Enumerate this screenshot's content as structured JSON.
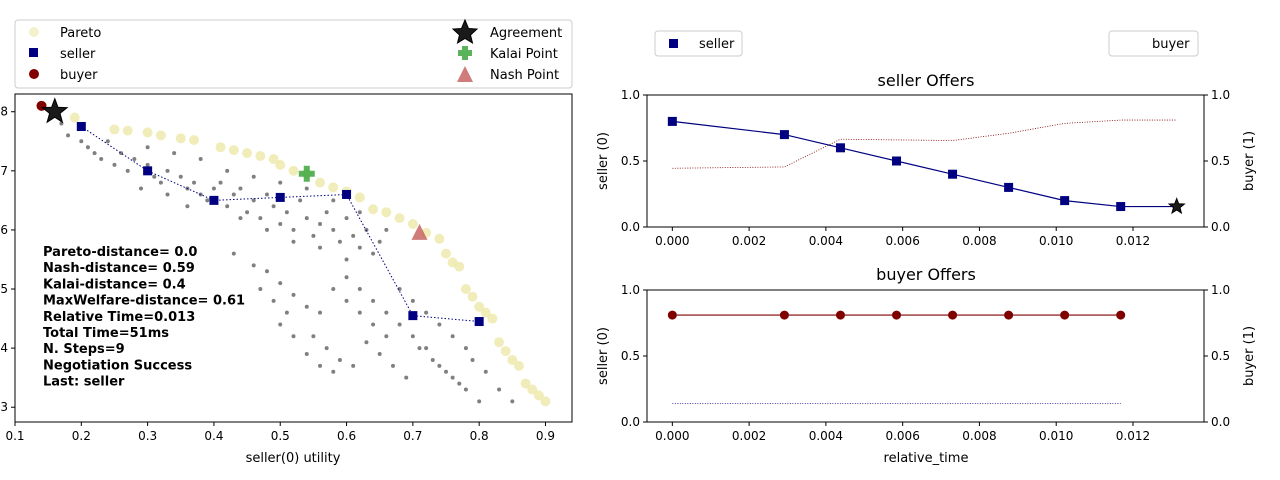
{
  "chart_data": [
    {
      "type": "scatter",
      "xlabel": "seller(0) utility",
      "ylabel": "",
      "xlim": [
        0.1,
        0.94
      ],
      "ylim": [
        0.275,
        0.83
      ],
      "x_ticks": [
        0.1,
        0.2,
        0.3,
        0.4,
        0.5,
        0.6,
        0.7,
        0.8,
        0.9
      ],
      "y_ticks": [
        0.3,
        0.4,
        0.5,
        0.6,
        0.7,
        0.8
      ],
      "y_tick_labels": [
        "3",
        "4",
        "5",
        "6",
        "7",
        "8"
      ],
      "legend": {
        "pareto": "Pareto",
        "seller": "seller",
        "buyer": "buyer",
        "agreement": "Agreement",
        "kalai": "Kalai Point",
        "nash": "Nash Point"
      },
      "pareto_frontier": [
        [
          0.14,
          0.81
        ],
        [
          0.16,
          0.8
        ],
        [
          0.19,
          0.79
        ],
        [
          0.25,
          0.77
        ],
        [
          0.27,
          0.768
        ],
        [
          0.3,
          0.765
        ],
        [
          0.32,
          0.76
        ],
        [
          0.35,
          0.755
        ],
        [
          0.37,
          0.752
        ],
        [
          0.41,
          0.74
        ],
        [
          0.43,
          0.735
        ],
        [
          0.45,
          0.73
        ],
        [
          0.47,
          0.725
        ],
        [
          0.49,
          0.72
        ],
        [
          0.5,
          0.71
        ],
        [
          0.52,
          0.7
        ],
        [
          0.54,
          0.695
        ],
        [
          0.56,
          0.68
        ],
        [
          0.58,
          0.672
        ],
        [
          0.6,
          0.665
        ],
        [
          0.62,
          0.655
        ],
        [
          0.64,
          0.635
        ],
        [
          0.66,
          0.63
        ],
        [
          0.68,
          0.62
        ],
        [
          0.7,
          0.61
        ],
        [
          0.72,
          0.595
        ],
        [
          0.74,
          0.585
        ],
        [
          0.75,
          0.56
        ],
        [
          0.76,
          0.545
        ],
        [
          0.77,
          0.538
        ],
        [
          0.78,
          0.5
        ],
        [
          0.79,
          0.487
        ],
        [
          0.8,
          0.47
        ],
        [
          0.81,
          0.46
        ],
        [
          0.82,
          0.45
        ],
        [
          0.83,
          0.41
        ],
        [
          0.84,
          0.395
        ],
        [
          0.85,
          0.38
        ],
        [
          0.86,
          0.37
        ],
        [
          0.87,
          0.34
        ],
        [
          0.88,
          0.33
        ],
        [
          0.89,
          0.32
        ],
        [
          0.9,
          0.31
        ]
      ],
      "outcomes": [
        [
          0.17,
          0.78
        ],
        [
          0.18,
          0.76
        ],
        [
          0.2,
          0.75
        ],
        [
          0.21,
          0.74
        ],
        [
          0.22,
          0.73
        ],
        [
          0.23,
          0.72
        ],
        [
          0.25,
          0.71
        ],
        [
          0.27,
          0.7
        ],
        [
          0.28,
          0.72
        ],
        [
          0.3,
          0.71
        ],
        [
          0.31,
          0.69
        ],
        [
          0.32,
          0.68
        ],
        [
          0.33,
          0.7
        ],
        [
          0.35,
          0.69
        ],
        [
          0.36,
          0.67
        ],
        [
          0.37,
          0.68
        ],
        [
          0.38,
          0.66
        ],
        [
          0.39,
          0.65
        ],
        [
          0.4,
          0.67
        ],
        [
          0.41,
          0.68
        ],
        [
          0.42,
          0.64
        ],
        [
          0.43,
          0.66
        ],
        [
          0.44,
          0.67
        ],
        [
          0.45,
          0.63
        ],
        [
          0.46,
          0.65
        ],
        [
          0.47,
          0.62
        ],
        [
          0.48,
          0.66
        ],
        [
          0.49,
          0.64
        ],
        [
          0.5,
          0.61
        ],
        [
          0.51,
          0.63
        ],
        [
          0.52,
          0.6
        ],
        [
          0.53,
          0.65
        ],
        [
          0.54,
          0.62
        ],
        [
          0.55,
          0.59
        ],
        [
          0.56,
          0.61
        ],
        [
          0.57,
          0.63
        ],
        [
          0.58,
          0.6
        ],
        [
          0.59,
          0.58
        ],
        [
          0.6,
          0.62
        ],
        [
          0.61,
          0.59
        ],
        [
          0.62,
          0.57
        ],
        [
          0.63,
          0.6
        ],
        [
          0.64,
          0.56
        ],
        [
          0.65,
          0.58
        ],
        [
          0.3,
          0.74
        ],
        [
          0.34,
          0.73
        ],
        [
          0.38,
          0.72
        ],
        [
          0.42,
          0.7
        ],
        [
          0.46,
          0.69
        ],
        [
          0.5,
          0.68
        ],
        [
          0.54,
          0.67
        ],
        [
          0.58,
          0.65
        ],
        [
          0.62,
          0.63
        ],
        [
          0.66,
          0.6
        ],
        [
          0.24,
          0.75
        ],
        [
          0.26,
          0.73
        ],
        [
          0.29,
          0.67
        ],
        [
          0.33,
          0.66
        ],
        [
          0.36,
          0.64
        ],
        [
          0.44,
          0.62
        ],
        [
          0.48,
          0.6
        ],
        [
          0.52,
          0.58
        ],
        [
          0.56,
          0.57
        ],
        [
          0.6,
          0.55
        ],
        [
          0.43,
          0.56
        ],
        [
          0.46,
          0.54
        ],
        [
          0.48,
          0.53
        ],
        [
          0.5,
          0.51
        ],
        [
          0.52,
          0.49
        ],
        [
          0.54,
          0.47
        ],
        [
          0.56,
          0.46
        ],
        [
          0.58,
          0.5
        ],
        [
          0.6,
          0.48
        ],
        [
          0.62,
          0.46
        ],
        [
          0.64,
          0.44
        ],
        [
          0.66,
          0.42
        ],
        [
          0.68,
          0.5
        ],
        [
          0.7,
          0.48
        ],
        [
          0.72,
          0.46
        ],
        [
          0.74,
          0.44
        ],
        [
          0.76,
          0.42
        ],
        [
          0.78,
          0.4
        ],
        [
          0.55,
          0.42
        ],
        [
          0.57,
          0.4
        ],
        [
          0.59,
          0.38
        ],
        [
          0.61,
          0.37
        ],
        [
          0.63,
          0.41
        ],
        [
          0.65,
          0.39
        ],
        [
          0.67,
          0.37
        ],
        [
          0.69,
          0.35
        ],
        [
          0.71,
          0.4
        ],
        [
          0.73,
          0.38
        ],
        [
          0.75,
          0.36
        ],
        [
          0.77,
          0.34
        ],
        [
          0.79,
          0.38
        ],
        [
          0.81,
          0.36
        ],
        [
          0.83,
          0.33
        ],
        [
          0.85,
          0.31
        ],
        [
          0.5,
          0.44
        ],
        [
          0.52,
          0.42
        ],
        [
          0.54,
          0.39
        ],
        [
          0.56,
          0.37
        ],
        [
          0.58,
          0.36
        ],
        [
          0.6,
          0.52
        ],
        [
          0.62,
          0.5
        ],
        [
          0.64,
          0.48
        ],
        [
          0.66,
          0.46
        ],
        [
          0.68,
          0.44
        ],
        [
          0.7,
          0.42
        ],
        [
          0.72,
          0.4
        ],
        [
          0.74,
          0.37
        ],
        [
          0.76,
          0.35
        ],
        [
          0.78,
          0.33
        ],
        [
          0.8,
          0.31
        ],
        [
          0.47,
          0.5
        ],
        [
          0.49,
          0.48
        ],
        [
          0.51,
          0.46
        ]
      ],
      "seller_offers": [
        [
          0.2,
          0.775
        ],
        [
          0.3,
          0.7
        ],
        [
          0.4,
          0.65
        ],
        [
          0.5,
          0.655
        ],
        [
          0.6,
          0.66
        ],
        [
          0.7,
          0.455
        ],
        [
          0.8,
          0.445
        ]
      ],
      "buyer_offers": [
        [
          0.14,
          0.81
        ]
      ],
      "agreement": [
        0.16,
        0.8
      ],
      "kalai": [
        0.54,
        0.695
      ],
      "nash": [
        0.71,
        0.595
      ],
      "annotation_lines": [
        "Pareto-distance=  0.0",
        "Nash-distance= 0.59",
        "Kalai-distance=  0.4",
        "MaxWelfare-distance= 0.61",
        "Relative Time=0.013",
        "Total Time=51ms",
        "N. Steps=9",
        "Negotiation Success",
        "Last: seller"
      ],
      "colors": {
        "pareto": "#eee8aa",
        "outcome": "#808080",
        "seller": "#000080",
        "buyer": "#800000",
        "kalai": "#3da63d",
        "nash": "#c0504d",
        "agreement": "#000000"
      }
    },
    {
      "type": "line",
      "title": "seller Offers",
      "ylabel": "seller (0)",
      "ylabel_right": "buyer (1)",
      "legend_left": "seller",
      "legend_right": "buyer",
      "xlim": [
        -0.00066,
        0.01385
      ],
      "ylim": [
        0,
        1.0
      ],
      "x_ticks": [
        0.0,
        0.002,
        0.004,
        0.006,
        0.008,
        0.01,
        0.012
      ],
      "x_tick_labels": [
        "0.000",
        "0.002",
        "0.004",
        "0.006",
        "0.008",
        "0.010",
        "0.012"
      ],
      "y_ticks": [
        0.0,
        0.5,
        1.0
      ],
      "y_tick_labels": [
        "0.0",
        "0.5",
        "1.0"
      ],
      "x": [
        0.0,
        0.00292,
        0.00438,
        0.00584,
        0.0073,
        0.00876,
        0.01022,
        0.01168,
        0.01314
      ],
      "seller_utility": [
        0.8,
        0.7,
        0.6,
        0.5,
        0.4,
        0.3,
        0.2,
        0.155,
        0.155
      ],
      "buyer_utility": [
        0.445,
        0.455,
        0.665,
        0.66,
        0.655,
        0.71,
        0.785,
        0.81,
        0.81
      ],
      "agreement": [
        0.01314,
        0.155
      ]
    },
    {
      "type": "line",
      "title": "buyer Offers",
      "xlabel": "relative_time",
      "ylabel": "seller (0)",
      "ylabel_right": "buyer (1)",
      "xlim": [
        -0.00066,
        0.01385
      ],
      "ylim": [
        0,
        1.0
      ],
      "x_ticks": [
        0.0,
        0.002,
        0.004,
        0.006,
        0.008,
        0.01,
        0.012
      ],
      "x_tick_labels": [
        "0.000",
        "0.002",
        "0.004",
        "0.006",
        "0.008",
        "0.010",
        "0.012"
      ],
      "y_ticks": [
        0.0,
        0.5,
        1.0
      ],
      "y_tick_labels": [
        "0.0",
        "0.5",
        "1.0"
      ],
      "x": [
        0.0,
        0.00292,
        0.00438,
        0.00584,
        0.0073,
        0.00876,
        0.01022,
        0.01168
      ],
      "buyer_utility": [
        0.81,
        0.81,
        0.81,
        0.81,
        0.81,
        0.81,
        0.81,
        0.81
      ],
      "seller_utility": [
        0.14,
        0.14,
        0.14,
        0.14,
        0.14,
        0.14,
        0.14,
        0.14
      ]
    }
  ]
}
